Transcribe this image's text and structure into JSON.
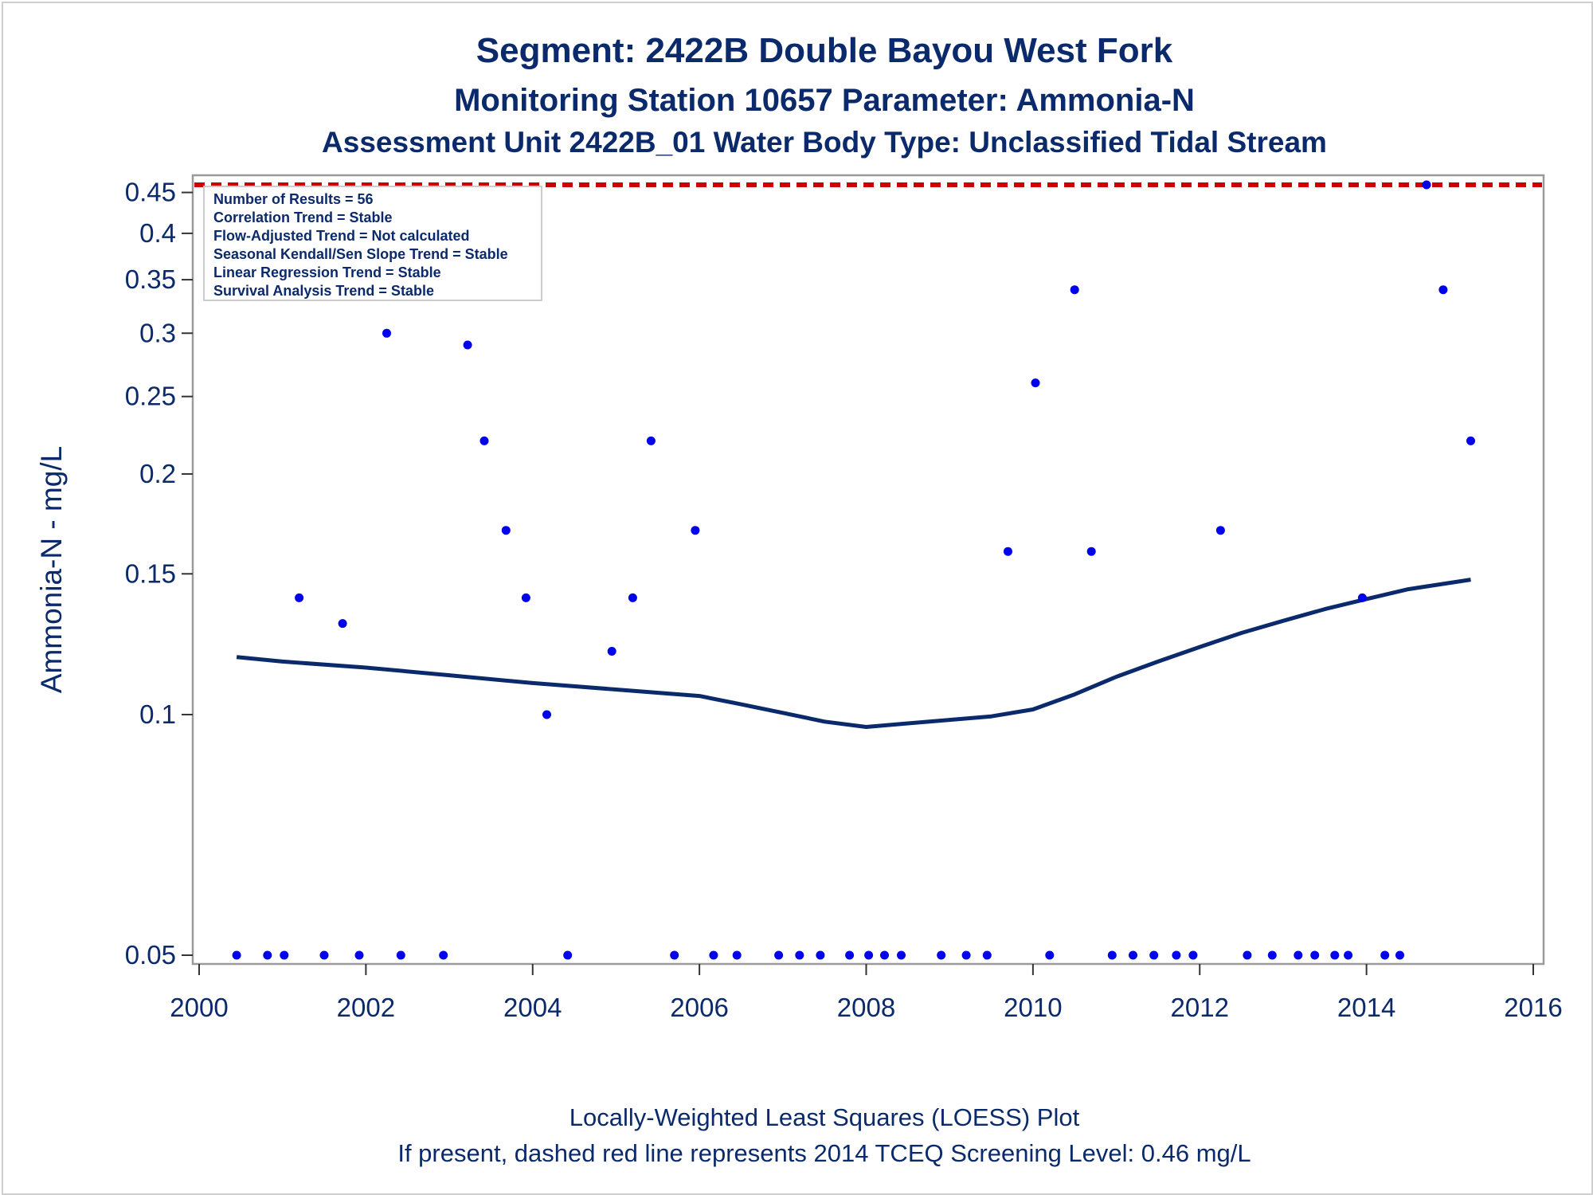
{
  "chart_data": {
    "type": "scatter",
    "title": "Segment: 2422B  Double Bayou West Fork",
    "subtitle": "Monitoring Station 10657 Parameter: Ammonia-N",
    "subtitle2": "Assessment Unit 2422B_01   Water Body Type: Unclassified Tidal Stream",
    "xlabel": "",
    "ylabel": "Ammonia-N - mg/L",
    "xlim": [
      2000,
      2016
    ],
    "ylim": [
      0.05,
      0.46
    ],
    "yscale": "log",
    "xticks": [
      "2000",
      "2002",
      "2004",
      "2006",
      "2008",
      "2010",
      "2012",
      "2014",
      "2016"
    ],
    "yticks": [
      "0.05",
      "0.1",
      "0.15",
      "0.2",
      "0.25",
      "0.3",
      "0.35",
      "0.4",
      "0.45"
    ],
    "grid": false,
    "screening_level": 0.46,
    "screening_color": "#cc0000",
    "point_color": "#0000ee",
    "line_color": "#0b2a6b",
    "stats": [
      "Number of Results = 56",
      "Correlation Trend = Stable",
      "Flow-Adjusted Trend = Not calculated",
      "Seasonal Kendall/Sen Slope Trend = Stable",
      "Linear Regression Trend = Stable",
      "Survival Analysis Trend = Stable"
    ],
    "footer": [
      "Locally-Weighted Least Squares (LOESS) Plot",
      "If present, dashed red line represents 2014 TCEQ Screening Level: 0.46 mg/L"
    ],
    "points": [
      [
        2000.45,
        0.05
      ],
      [
        2000.82,
        0.05
      ],
      [
        2001.02,
        0.05
      ],
      [
        2001.2,
        0.14
      ],
      [
        2001.5,
        0.05
      ],
      [
        2001.72,
        0.13
      ],
      [
        2001.92,
        0.05
      ],
      [
        2002.25,
        0.3
      ],
      [
        2002.42,
        0.05
      ],
      [
        2002.93,
        0.05
      ],
      [
        2003.22,
        0.29
      ],
      [
        2003.42,
        0.22
      ],
      [
        2003.68,
        0.17
      ],
      [
        2003.92,
        0.14
      ],
      [
        2004.17,
        0.1
      ],
      [
        2004.42,
        0.05
      ],
      [
        2004.95,
        0.12
      ],
      [
        2005.2,
        0.14
      ],
      [
        2005.42,
        0.22
      ],
      [
        2005.7,
        0.05
      ],
      [
        2005.95,
        0.17
      ],
      [
        2006.17,
        0.05
      ],
      [
        2006.45,
        0.05
      ],
      [
        2006.95,
        0.05
      ],
      [
        2007.2,
        0.05
      ],
      [
        2007.45,
        0.05
      ],
      [
        2007.8,
        0.05
      ],
      [
        2008.03,
        0.05
      ],
      [
        2008.22,
        0.05
      ],
      [
        2008.42,
        0.05
      ],
      [
        2008.9,
        0.05
      ],
      [
        2009.2,
        0.05
      ],
      [
        2009.45,
        0.05
      ],
      [
        2009.7,
        0.16
      ],
      [
        2010.03,
        0.26
      ],
      [
        2010.2,
        0.05
      ],
      [
        2010.5,
        0.34
      ],
      [
        2010.7,
        0.16
      ],
      [
        2010.95,
        0.05
      ],
      [
        2011.2,
        0.05
      ],
      [
        2011.45,
        0.05
      ],
      [
        2011.72,
        0.05
      ],
      [
        2011.92,
        0.05
      ],
      [
        2012.25,
        0.17
      ],
      [
        2012.57,
        0.05
      ],
      [
        2012.87,
        0.05
      ],
      [
        2013.18,
        0.05
      ],
      [
        2013.38,
        0.05
      ],
      [
        2013.62,
        0.05
      ],
      [
        2013.78,
        0.05
      ],
      [
        2013.95,
        0.14
      ],
      [
        2014.22,
        0.05
      ],
      [
        2014.4,
        0.05
      ],
      [
        2014.72,
        0.46
      ],
      [
        2014.92,
        0.34
      ],
      [
        2015.25,
        0.22
      ]
    ],
    "loess": [
      [
        2000.45,
        0.118
      ],
      [
        2001.0,
        0.1165
      ],
      [
        2002.0,
        0.1145
      ],
      [
        2003.0,
        0.112
      ],
      [
        2004.0,
        0.1095
      ],
      [
        2005.0,
        0.1075
      ],
      [
        2006.0,
        0.1055
      ],
      [
        2006.5,
        0.103
      ],
      [
        2007.0,
        0.1005
      ],
      [
        2007.5,
        0.098
      ],
      [
        2008.0,
        0.0965
      ],
      [
        2008.5,
        0.0975
      ],
      [
        2009.0,
        0.0985
      ],
      [
        2009.5,
        0.0995
      ],
      [
        2010.0,
        0.1015
      ],
      [
        2010.5,
        0.106
      ],
      [
        2011.0,
        0.1115
      ],
      [
        2011.5,
        0.1165
      ],
      [
        2012.0,
        0.1215
      ],
      [
        2012.5,
        0.1265
      ],
      [
        2013.0,
        0.131
      ],
      [
        2013.5,
        0.1355
      ],
      [
        2014.0,
        0.1395
      ],
      [
        2014.5,
        0.1435
      ],
      [
        2015.25,
        0.1475
      ]
    ]
  }
}
